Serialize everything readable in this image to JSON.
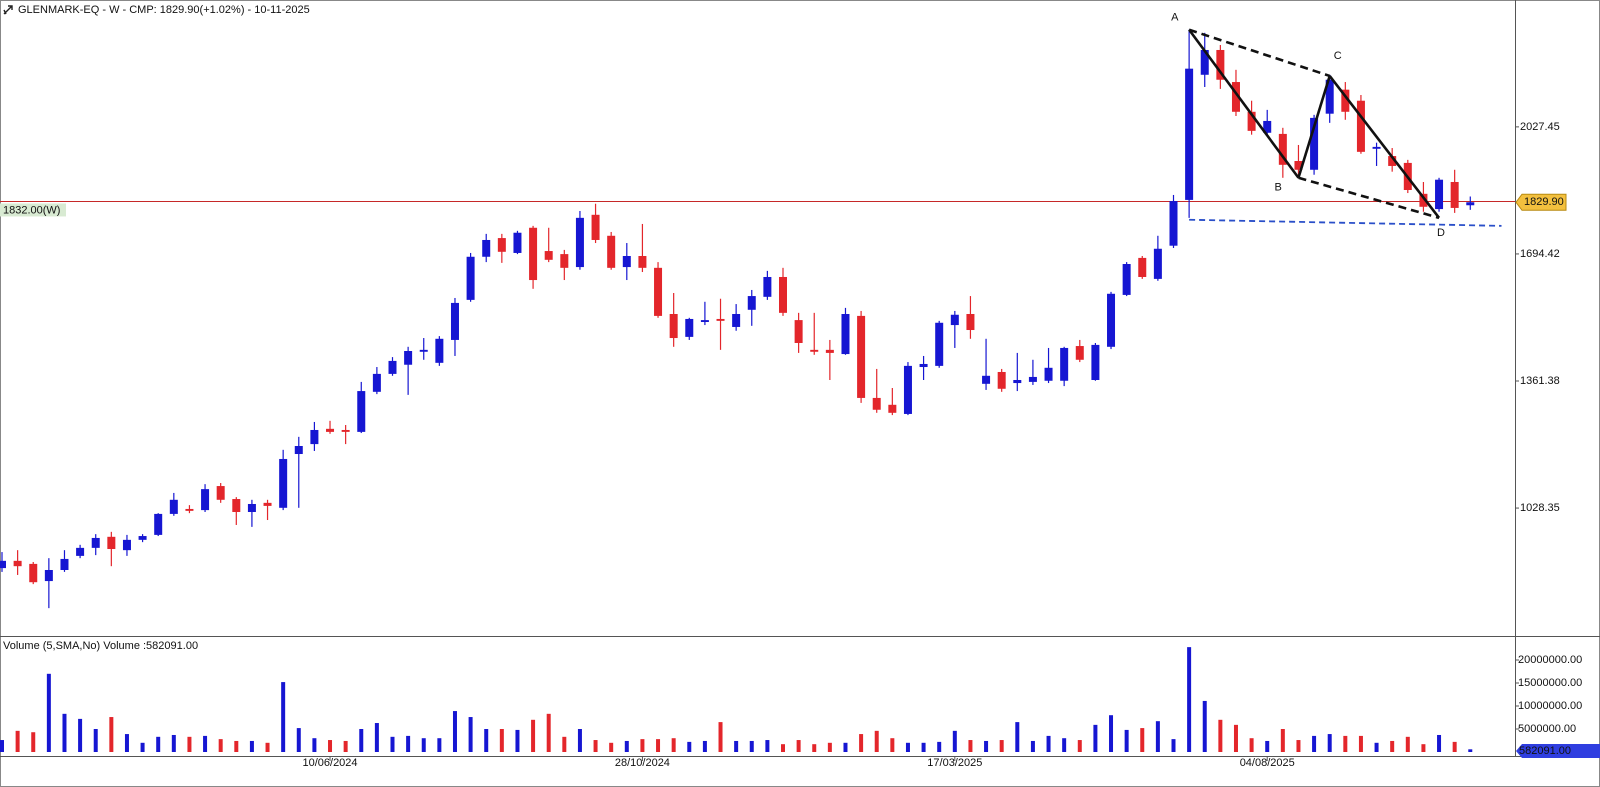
{
  "chart_data": {
    "type": "candlestick",
    "title": "GLENMARK-EQ - W - CMP: 1829.90(+1.02%) - 10-11-2025",
    "up_color": "#1616d2",
    "down_color": "#e3262b",
    "categories": [
      null,
      null,
      null,
      null,
      null,
      null,
      null,
      null,
      null,
      null,
      null,
      null,
      null,
      null,
      null,
      null,
      null,
      null,
      null,
      null,
      null,
      "10/06/2024",
      null,
      null,
      null,
      null,
      null,
      null,
      null,
      null,
      null,
      null,
      null,
      null,
      null,
      null,
      null,
      null,
      null,
      null,
      null,
      "28/10/2024",
      null,
      null,
      null,
      null,
      null,
      null,
      null,
      null,
      null,
      null,
      null,
      null,
      null,
      null,
      null,
      null,
      null,
      null,
      null,
      "17/03/2025",
      null,
      null,
      null,
      null,
      null,
      null,
      null,
      null,
      null,
      null,
      null,
      null,
      null,
      null,
      null,
      null,
      null,
      null,
      null,
      "04/08/2025",
      null,
      null,
      null,
      null,
      null,
      null,
      null,
      null,
      null,
      null,
      null,
      null,
      null
    ],
    "candles": [
      [
        871,
        913,
        861,
        890
      ],
      [
        890,
        918,
        853,
        876
      ],
      [
        882,
        887,
        829,
        834
      ],
      [
        837,
        897,
        766,
        866
      ],
      [
        866,
        918,
        861,
        895
      ],
      [
        903,
        932,
        897,
        924
      ],
      [
        924,
        960,
        905,
        950
      ],
      [
        953,
        966,
        876,
        921
      ],
      [
        918,
        958,
        903,
        945
      ],
      [
        945,
        960,
        939,
        955
      ],
      [
        958,
        1015,
        955,
        1013
      ],
      [
        1013,
        1068,
        1008,
        1050
      ],
      [
        1026,
        1036,
        1015,
        1021
      ],
      [
        1023,
        1091,
        1018,
        1078
      ],
      [
        1086,
        1094,
        1042,
        1050
      ],
      [
        1052,
        1057,
        984,
        1018
      ],
      [
        1018,
        1050,
        979,
        1039
      ],
      [
        1042,
        1050,
        997,
        1034
      ],
      [
        1029,
        1181,
        1023,
        1157
      ],
      [
        1170,
        1215,
        1029,
        1191
      ],
      [
        1196,
        1254,
        1178,
        1233
      ],
      [
        1236,
        1257,
        1223,
        1228
      ],
      [
        1233,
        1246,
        1196,
        1228
      ],
      [
        1228,
        1359,
        1225,
        1335
      ],
      [
        1333,
        1398,
        1327,
        1380
      ],
      [
        1380,
        1424,
        1375,
        1414
      ],
      [
        1404,
        1451,
        1325,
        1440
      ],
      [
        1438,
        1474,
        1417,
        1443
      ],
      [
        1409,
        1479,
        1401,
        1472
      ],
      [
        1469,
        1579,
        1427,
        1566
      ],
      [
        1574,
        1697,
        1569,
        1687
      ],
      [
        1687,
        1747,
        1673,
        1731
      ],
      [
        1736,
        1747,
        1671,
        1700
      ],
      [
        1697,
        1755,
        1694,
        1750
      ],
      [
        1763,
        1768,
        1603,
        1626
      ],
      [
        1702,
        1763,
        1673,
        1679
      ],
      [
        1694,
        1705,
        1626,
        1658
      ],
      [
        1660,
        1807,
        1653,
        1789
      ],
      [
        1797,
        1826,
        1723,
        1731
      ],
      [
        1742,
        1752,
        1653,
        1658
      ],
      [
        1660,
        1723,
        1626,
        1689
      ],
      [
        1689,
        1773,
        1647,
        1658
      ],
      [
        1658,
        1673,
        1527,
        1532
      ],
      [
        1537,
        1592,
        1451,
        1474
      ],
      [
        1477,
        1527,
        1469,
        1524
      ],
      [
        1516,
        1569,
        1508,
        1521
      ],
      [
        1524,
        1577,
        1443,
        1519
      ],
      [
        1503,
        1563,
        1493,
        1537
      ],
      [
        1548,
        1600,
        1506,
        1584
      ],
      [
        1582,
        1650,
        1574,
        1634
      ],
      [
        1634,
        1658,
        1532,
        1540
      ],
      [
        1521,
        1540,
        1435,
        1461
      ],
      [
        1443,
        1540,
        1430,
        1438
      ],
      [
        1443,
        1469,
        1364,
        1435
      ],
      [
        1432,
        1553,
        1430,
        1537
      ],
      [
        1532,
        1545,
        1304,
        1317
      ],
      [
        1317,
        1393,
        1278,
        1286
      ],
      [
        1299,
        1343,
        1272,
        1278
      ],
      [
        1275,
        1411,
        1272,
        1401
      ],
      [
        1398,
        1427,
        1364,
        1406
      ],
      [
        1401,
        1519,
        1396,
        1514
      ],
      [
        1508,
        1545,
        1448,
        1535
      ],
      [
        1537,
        1584,
        1472,
        1495
      ],
      [
        1354,
        1472,
        1338,
        1375
      ],
      [
        1385,
        1393,
        1333,
        1341
      ],
      [
        1356,
        1435,
        1335,
        1364
      ],
      [
        1359,
        1417,
        1351,
        1372
      ],
      [
        1362,
        1448,
        1356,
        1396
      ],
      [
        1362,
        1451,
        1348,
        1448
      ],
      [
        1453,
        1469,
        1411,
        1417
      ],
      [
        1364,
        1461,
        1362,
        1456
      ],
      [
        1451,
        1595,
        1445,
        1590
      ],
      [
        1587,
        1673,
        1584,
        1668
      ],
      [
        1684,
        1689,
        1629,
        1634
      ],
      [
        1629,
        1742,
        1624,
        1708
      ],
      [
        1716,
        1849,
        1710,
        1833
      ],
      [
        1836,
        2282,
        1789,
        2180
      ],
      [
        2164,
        2274,
        2132,
        2229
      ],
      [
        2229,
        2242,
        2127,
        2151
      ],
      [
        2145,
        2177,
        2056,
        2067
      ],
      [
        2067,
        2096,
        2007,
        2017
      ],
      [
        2012,
        2072,
        2004,
        2043
      ],
      [
        2009,
        2025,
        1894,
        1928
      ],
      [
        1938,
        1980,
        1902,
        1915
      ],
      [
        1915,
        2059,
        1902,
        2051
      ],
      [
        2062,
        2164,
        2038,
        2151
      ],
      [
        2125,
        2145,
        2046,
        2067
      ],
      [
        2096,
        2111,
        1957,
        1962
      ],
      [
        1970,
        1986,
        1925,
        1975
      ],
      [
        1951,
        1972,
        1910,
        1925
      ],
      [
        1933,
        1941,
        1854,
        1862
      ],
      [
        1852,
        1883,
        1805,
        1818
      ],
      [
        1812,
        1894,
        1805,
        1889
      ],
      [
        1883,
        1915,
        1802,
        1815
      ],
      [
        1822,
        1845,
        1810,
        1829.9
      ]
    ],
    "ylim": [
      693,
      2360
    ],
    "yticks": [
      1028.35,
      1361.38,
      1694.42,
      2027.45
    ],
    "last_price": {
      "value": 1829.9,
      "label": "1829.90",
      "color": "#f3c03e"
    },
    "hline": {
      "value": 1832,
      "label": "1832.00(W)",
      "color": "#c62828"
    },
    "annotations": [
      {
        "label": "A",
        "index": 76,
        "price": 2282
      },
      {
        "label": "B",
        "index": 83,
        "price": 1894
      },
      {
        "label": "C",
        "index": 85,
        "price": 2161
      },
      {
        "label": "D",
        "index": 92,
        "price": 1789
      }
    ],
    "support_line": {
      "start": [
        76,
        1784
      ],
      "end": [
        96,
        1768
      ],
      "color": "#2a4fc9"
    },
    "volume": {
      "title": "Volume (5,SMA,No) Volume :582091.00",
      "tag": "582091.00",
      "tag_color": "#2f3ee0",
      "values": [
        2600000,
        4600000,
        4300000,
        17000000,
        8300000,
        7200000,
        5000000,
        7600000,
        3900000,
        2000000,
        3300000,
        3700000,
        3300000,
        3500000,
        2800000,
        2400000,
        2400000,
        2000000,
        15200000,
        5200000,
        3000000,
        2600000,
        2400000,
        5000000,
        6300000,
        3300000,
        3500000,
        3000000,
        3000000,
        8900000,
        7600000,
        5000000,
        5000000,
        4800000,
        7000000,
        8300000,
        3300000,
        5000000,
        2600000,
        2000000,
        2400000,
        2800000,
        2800000,
        3000000,
        2200000,
        2400000,
        6500000,
        2400000,
        2400000,
        2600000,
        1700000,
        2600000,
        1700000,
        2000000,
        2000000,
        3900000,
        4600000,
        3000000,
        2000000,
        2000000,
        2200000,
        4600000,
        2600000,
        2400000,
        2600000,
        6500000,
        2400000,
        3500000,
        3000000,
        2600000,
        5900000,
        8000000,
        4800000,
        5200000,
        6700000,
        2800000,
        22800000,
        11100000,
        7000000,
        5900000,
        3000000,
        2400000,
        5000000,
        2600000,
        3500000,
        3900000,
        3500000,
        3500000,
        2000000,
        2400000,
        3300000,
        1700000,
        3700000,
        2200000,
        582091
      ],
      "ylim": [
        0,
        24350000
      ],
      "yticks": [
        {
          "value": 5000000,
          "label": "5000000.00"
        },
        {
          "value": 10000000,
          "label": "10000000.00"
        },
        {
          "value": 15000000,
          "label": "15000000.00"
        },
        {
          "value": 20000000,
          "label": "20000000.00"
        }
      ]
    }
  }
}
